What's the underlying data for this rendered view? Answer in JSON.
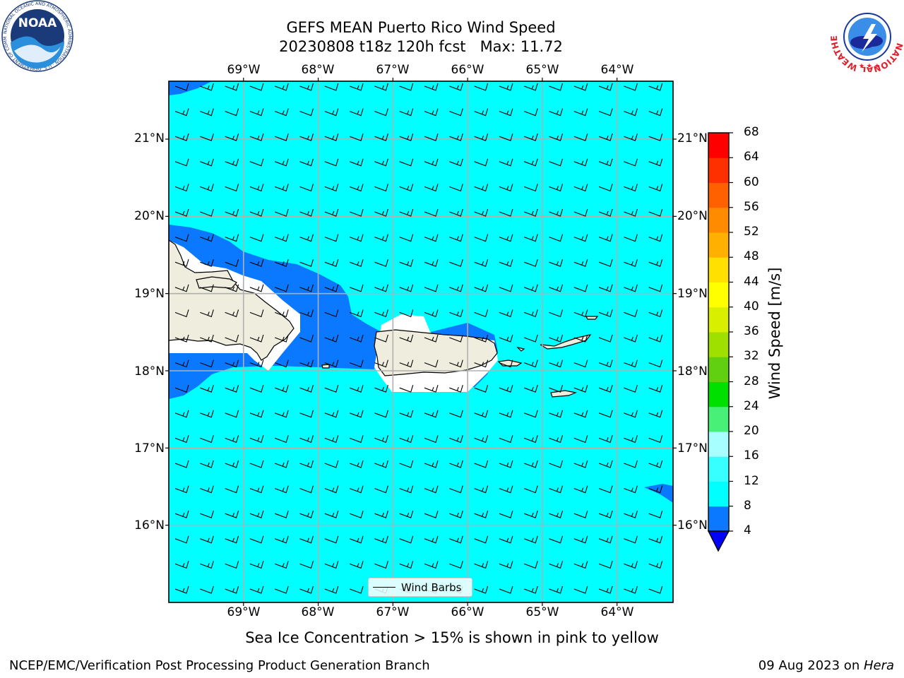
{
  "title": {
    "line1": "GEFS MEAN Puerto Rico Wind Speed",
    "line2": "20230808 t18z 120h fcst   Max: 11.72"
  },
  "map": {
    "lon_labels": [
      "69°W",
      "68°W",
      "67°W",
      "66°W",
      "65°W",
      "64°W"
    ],
    "lat_labels": [
      "21°N",
      "20°N",
      "19°N",
      "18°N",
      "17°N",
      "16°N"
    ],
    "lon_range": [
      -70.0,
      -63.25
    ],
    "lat_range": [
      15.0,
      21.75
    ],
    "ocean_color": "#00ffff",
    "contour_4_8_color": "#0a78ff",
    "land_color": "#efedde",
    "grid_color": "#b0b0b0",
    "barb_color": "#000000"
  },
  "legend": {
    "label": "Wind Barbs"
  },
  "colorbar": {
    "label": "Wind Speed [m/s]",
    "ticks": [
      "4",
      "8",
      "12",
      "16",
      "20",
      "24",
      "28",
      "32",
      "36",
      "40",
      "44",
      "48",
      "52",
      "56",
      "60",
      "64",
      "68"
    ],
    "colors": [
      "#0a78ff",
      "#00ffff",
      "#38ffff",
      "#a8ffff",
      "#48f078",
      "#00e000",
      "#60d010",
      "#a0e000",
      "#d8f000",
      "#ffff00",
      "#ffe000",
      "#ffb000",
      "#ff8c00",
      "#ff6000",
      "#ff3000",
      "#ff0000"
    ],
    "under_color": "#0000ff"
  },
  "notes": {
    "sea_ice": "Sea Ice Concentration > 15% is shown in pink to yellow"
  },
  "footer": {
    "left": "NCEP/EMC/Verification Post Processing Product Generation Branch",
    "right_prefix": "09 Aug 2023 on ",
    "right_machine": "Hera"
  },
  "logos": {
    "left": "NOAA",
    "left_ring": "NATIONAL OCEANIC AND ATMOSPHERIC ADMINISTRATION · U.S. DEPARTMENT OF COMMERCE",
    "right_ring": "NATIONAL WEATHER SERVICE"
  }
}
